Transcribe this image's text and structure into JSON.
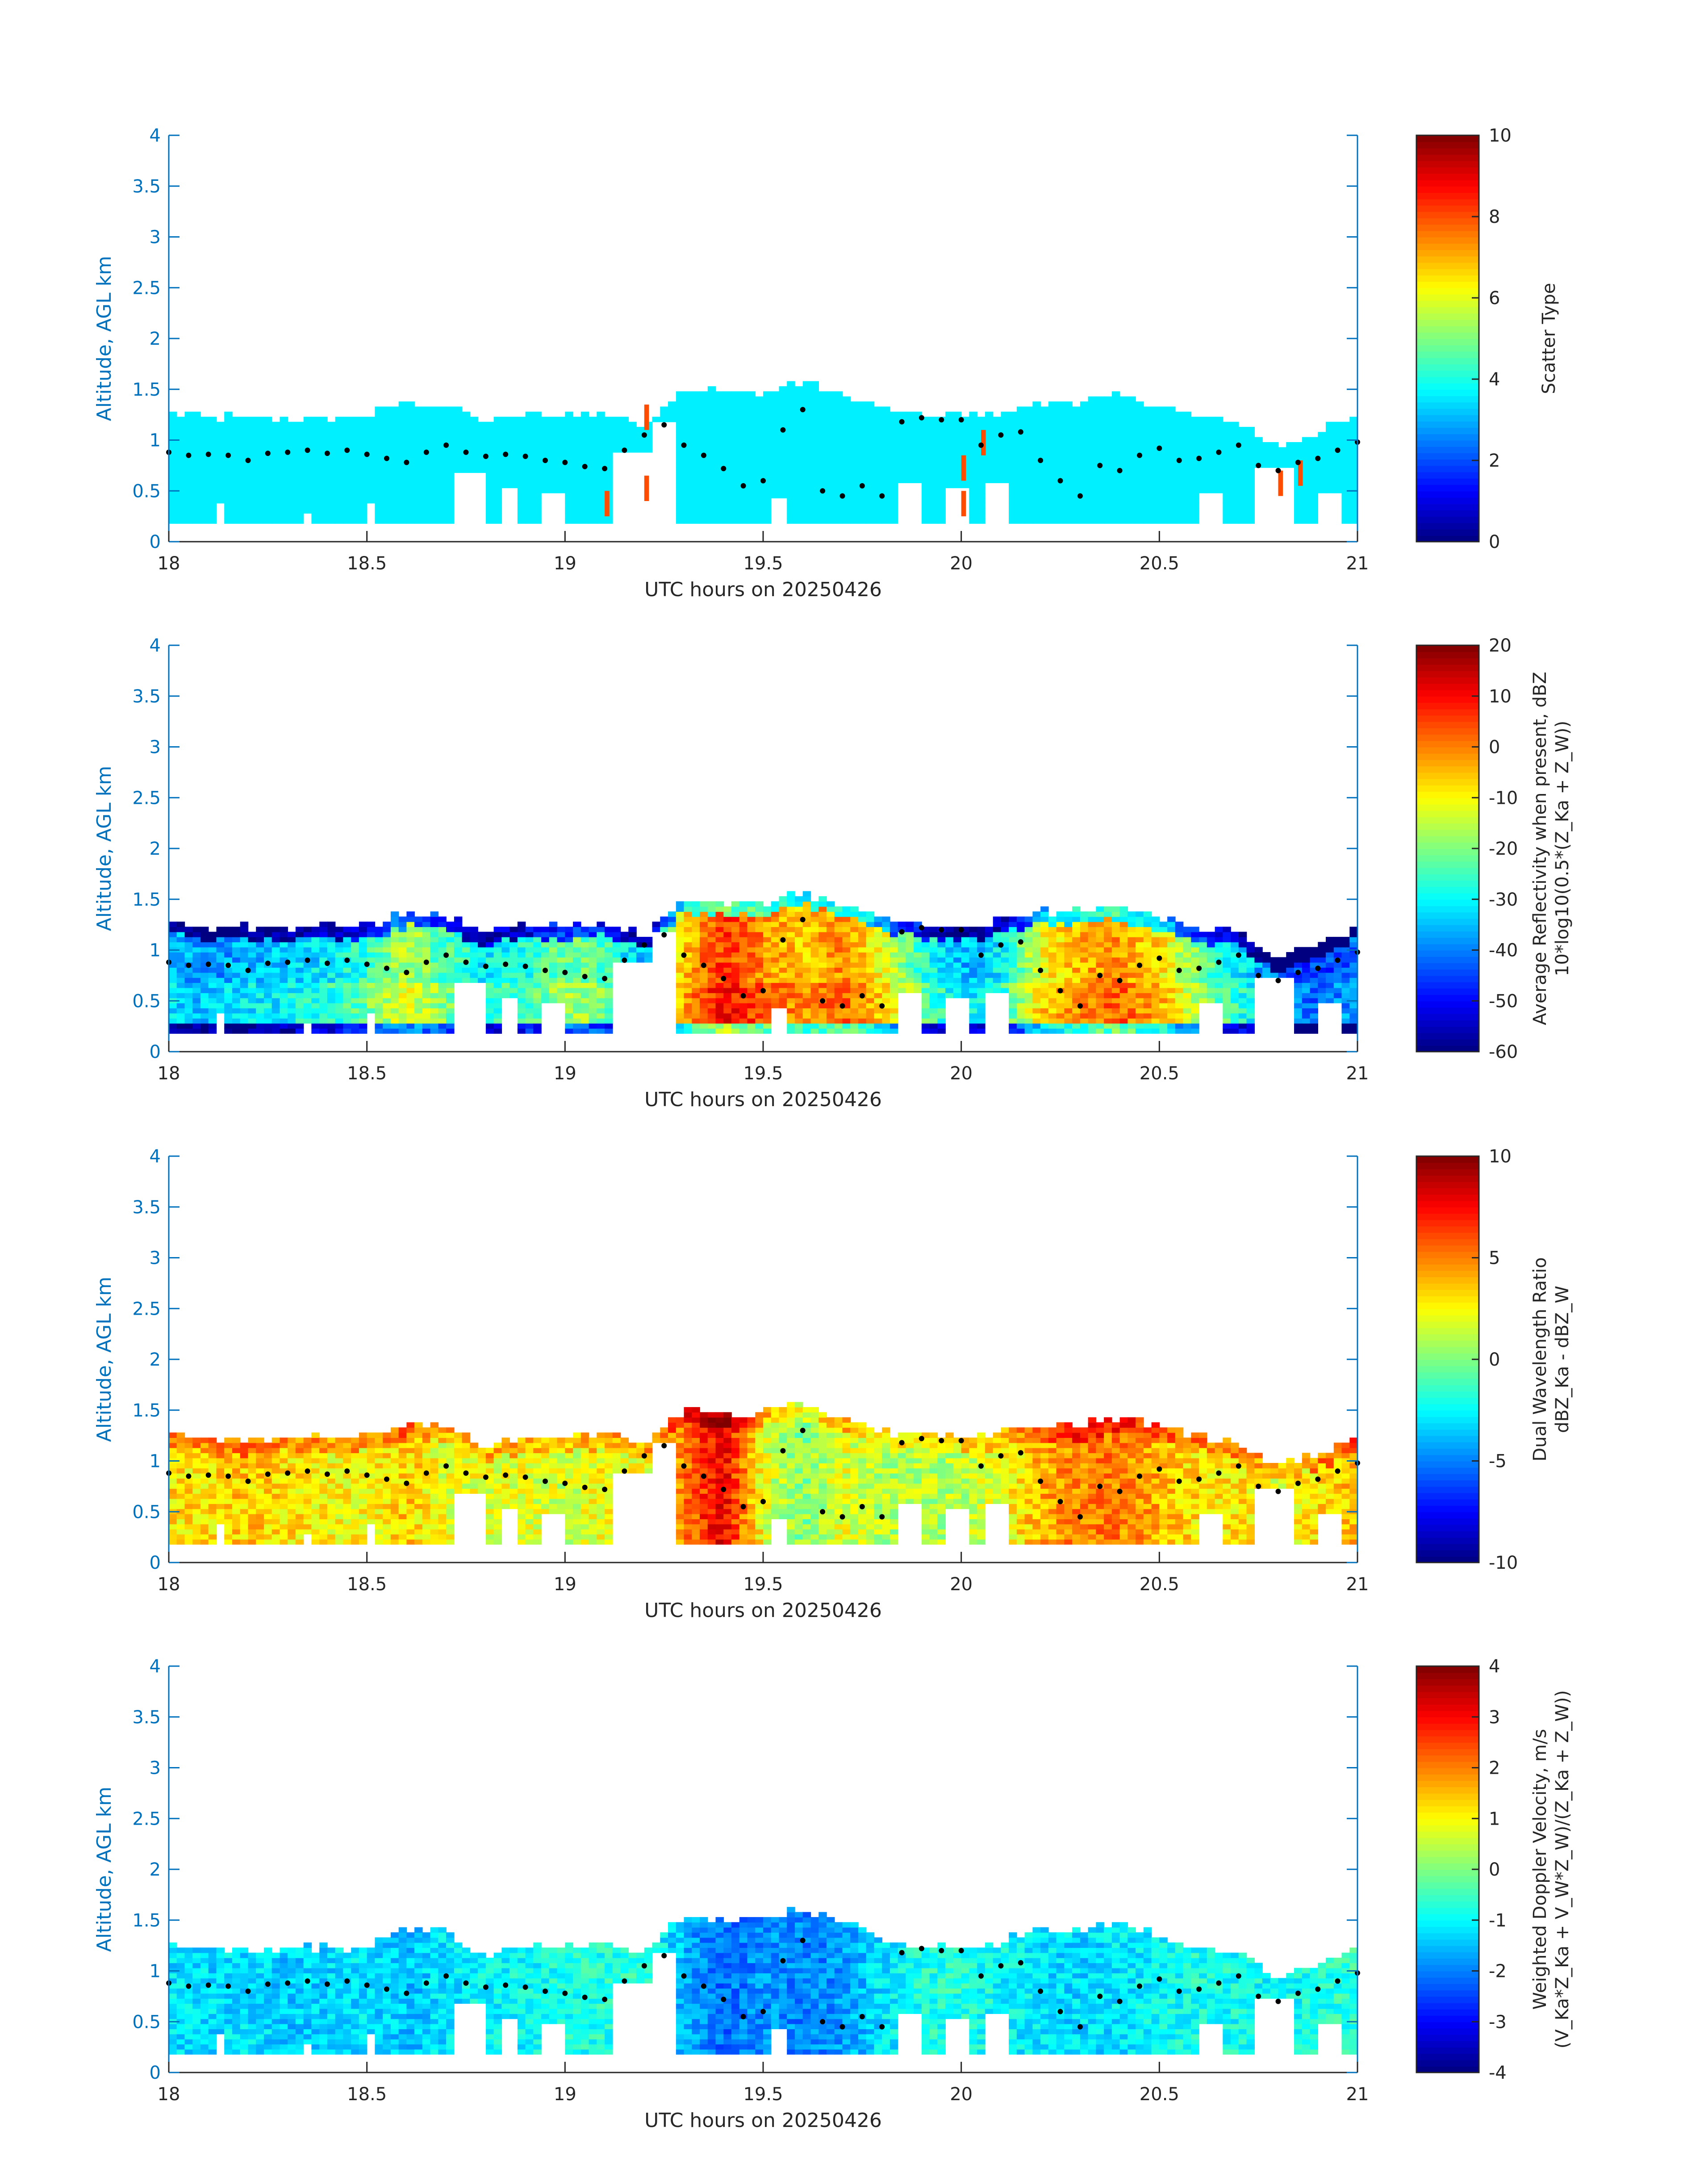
{
  "chart_data": [
    {
      "type": "heatmap",
      "xlabel": "UTC hours on 20250426",
      "ylabel": "Altitude, AGL km",
      "xlim": [
        18,
        21
      ],
      "ylim": [
        0,
        4
      ],
      "xticks": [
        "18",
        "18.5",
        "19",
        "19.5",
        "20",
        "20.5",
        "21"
      ],
      "yticks": [
        "0",
        "0.5",
        "1",
        "1.5",
        "2",
        "2.5",
        "3",
        "3.5",
        "4"
      ],
      "colorbar": {
        "label": "Scatter Type",
        "clim": [
          0,
          10
        ],
        "ticks": [
          "0",
          "2",
          "4",
          "6",
          "8",
          "10"
        ],
        "colormap": "jet"
      },
      "field": "scatter_type",
      "dominant_value": 3.6,
      "cell_bottom_km": 0.18,
      "cloud_top_km": [
        [
          18.0,
          1.25
        ],
        [
          18.1,
          1.2
        ],
        [
          18.2,
          1.2
        ],
        [
          18.3,
          1.2
        ],
        [
          18.4,
          1.2
        ],
        [
          18.5,
          1.22
        ],
        [
          18.6,
          1.35
        ],
        [
          18.7,
          1.32
        ],
        [
          18.8,
          1.15
        ],
        [
          18.9,
          1.22
        ],
        [
          19.0,
          1.22
        ],
        [
          19.1,
          1.25
        ],
        [
          19.2,
          1.12
        ],
        [
          19.3,
          1.5
        ],
        [
          19.4,
          1.45
        ],
        [
          19.5,
          1.45
        ],
        [
          19.6,
          1.55
        ],
        [
          19.7,
          1.42
        ],
        [
          19.8,
          1.28
        ],
        [
          19.9,
          1.22
        ],
        [
          20.0,
          1.22
        ],
        [
          20.1,
          1.25
        ],
        [
          20.2,
          1.35
        ],
        [
          20.3,
          1.35
        ],
        [
          20.4,
          1.4
        ],
        [
          20.5,
          1.3
        ],
        [
          20.6,
          1.2
        ],
        [
          20.7,
          1.15
        ],
        [
          20.8,
          0.9
        ],
        [
          20.9,
          1.05
        ],
        [
          21.0,
          1.2
        ]
      ],
      "outlier_cells": [
        [
          19.1,
          0.25,
          8
        ],
        [
          19.2,
          1.1,
          8
        ],
        [
          19.2,
          0.4,
          8
        ],
        [
          20.0,
          0.6,
          8
        ],
        [
          20.0,
          0.25,
          8
        ],
        [
          20.05,
          0.85,
          8
        ],
        [
          20.8,
          0.45,
          8
        ],
        [
          20.85,
          0.55,
          8
        ]
      ],
      "markers": {
        "color": "#000000",
        "points": [
          [
            18.0,
            0.88
          ],
          [
            18.05,
            0.85
          ],
          [
            18.1,
            0.86
          ],
          [
            18.15,
            0.85
          ],
          [
            18.2,
            0.8
          ],
          [
            18.25,
            0.87
          ],
          [
            18.3,
            0.88
          ],
          [
            18.35,
            0.9
          ],
          [
            18.4,
            0.87
          ],
          [
            18.45,
            0.9
          ],
          [
            18.5,
            0.86
          ],
          [
            18.55,
            0.82
          ],
          [
            18.6,
            0.78
          ],
          [
            18.65,
            0.88
          ],
          [
            18.7,
            0.95
          ],
          [
            18.75,
            0.88
          ],
          [
            18.8,
            0.84
          ],
          [
            18.85,
            0.86
          ],
          [
            18.9,
            0.84
          ],
          [
            18.95,
            0.8
          ],
          [
            19.0,
            0.78
          ],
          [
            19.05,
            0.74
          ],
          [
            19.1,
            0.72
          ],
          [
            19.15,
            0.9
          ],
          [
            19.2,
            1.05
          ],
          [
            19.25,
            1.15
          ],
          [
            19.3,
            0.95
          ],
          [
            19.35,
            0.85
          ],
          [
            19.4,
            0.72
          ],
          [
            19.45,
            0.55
          ],
          [
            19.5,
            0.6
          ],
          [
            19.55,
            1.1
          ],
          [
            19.6,
            1.3
          ],
          [
            19.65,
            0.5
          ],
          [
            19.7,
            0.45
          ],
          [
            19.75,
            0.55
          ],
          [
            19.8,
            0.45
          ],
          [
            19.85,
            1.18
          ],
          [
            19.9,
            1.22
          ],
          [
            19.95,
            1.2
          ],
          [
            20.0,
            1.2
          ],
          [
            20.05,
            0.95
          ],
          [
            20.1,
            1.05
          ],
          [
            20.15,
            1.08
          ],
          [
            20.2,
            0.8
          ],
          [
            20.25,
            0.6
          ],
          [
            20.3,
            0.45
          ],
          [
            20.35,
            0.75
          ],
          [
            20.4,
            0.7
          ],
          [
            20.45,
            0.85
          ],
          [
            20.5,
            0.92
          ],
          [
            20.55,
            0.8
          ],
          [
            20.6,
            0.82
          ],
          [
            20.65,
            0.88
          ],
          [
            20.7,
            0.95
          ],
          [
            20.75,
            0.75
          ],
          [
            20.8,
            0.7
          ],
          [
            20.85,
            0.78
          ],
          [
            20.9,
            0.82
          ],
          [
            20.95,
            0.9
          ],
          [
            21.0,
            0.98
          ]
        ]
      }
    },
    {
      "type": "heatmap",
      "xlabel": "UTC hours on 20250426",
      "ylabel": "Altitude, AGL km",
      "xlim": [
        18,
        21
      ],
      "ylim": [
        0,
        4
      ],
      "xticks": [
        "18",
        "18.5",
        "19",
        "19.5",
        "20",
        "20.5",
        "21"
      ],
      "yticks": [
        "0",
        "0.5",
        "1",
        "1.5",
        "2",
        "2.5",
        "3",
        "3.5",
        "4"
      ],
      "colorbar": {
        "label": "Average Reflectivity when present, dBZ",
        "label2": "10*log10(0.5*(Z_Ka + Z_W))",
        "clim": [
          -60,
          20
        ],
        "ticks": [
          "-60",
          "-50",
          "-40",
          "-30",
          "-20",
          "-10",
          "0",
          "10",
          "20"
        ],
        "colormap": "jet"
      },
      "field": "reflectivity_dbz",
      "column_core_dbz": [
        [
          18.0,
          -30
        ],
        [
          18.1,
          -32
        ],
        [
          18.2,
          -30
        ],
        [
          18.3,
          -28
        ],
        [
          18.4,
          -25
        ],
        [
          18.5,
          -20
        ],
        [
          18.6,
          -10
        ],
        [
          18.7,
          -18
        ],
        [
          18.8,
          -25
        ],
        [
          18.9,
          -22
        ],
        [
          19.0,
          -15
        ],
        [
          19.1,
          -18
        ],
        [
          19.2,
          -30
        ],
        [
          19.3,
          0
        ],
        [
          19.4,
          12
        ],
        [
          19.5,
          5
        ],
        [
          19.6,
          0
        ],
        [
          19.7,
          5
        ],
        [
          19.8,
          -5
        ],
        [
          19.9,
          -20
        ],
        [
          20.0,
          -30
        ],
        [
          20.1,
          -25
        ],
        [
          20.2,
          -5
        ],
        [
          20.3,
          2
        ],
        [
          20.4,
          5
        ],
        [
          20.5,
          -2
        ],
        [
          20.6,
          -15
        ],
        [
          20.7,
          -25
        ],
        [
          20.8,
          -35
        ],
        [
          20.9,
          -40
        ],
        [
          21.0,
          -35
        ]
      ],
      "markers": {
        "color": "#000000",
        "same_as_panel": 1
      }
    },
    {
      "type": "heatmap",
      "xlabel": "UTC hours on 20250426",
      "ylabel": "Altitude, AGL km",
      "xlim": [
        18,
        21
      ],
      "ylim": [
        0,
        4
      ],
      "xticks": [
        "18",
        "18.5",
        "19",
        "19.5",
        "20",
        "20.5",
        "21"
      ],
      "yticks": [
        "0",
        "0.5",
        "1",
        "1.5",
        "2",
        "2.5",
        "3",
        "3.5",
        "4"
      ],
      "colorbar": {
        "label": "Dual Wavelength Ratio",
        "label2": "dBZ_Ka - dBZ_W",
        "clim": [
          -10,
          10
        ],
        "ticks": [
          "-10",
          "-5",
          "0",
          "5",
          "10"
        ],
        "colormap": "jet"
      },
      "field": "dwr_db",
      "column_core_db": [
        [
          18.0,
          3
        ],
        [
          18.1,
          3
        ],
        [
          18.2,
          3.5
        ],
        [
          18.3,
          3
        ],
        [
          18.4,
          2.5
        ],
        [
          18.5,
          2.5
        ],
        [
          18.6,
          3.5
        ],
        [
          18.7,
          2
        ],
        [
          18.8,
          2
        ],
        [
          18.9,
          2
        ],
        [
          19.0,
          1.5
        ],
        [
          19.1,
          2.5
        ],
        [
          19.2,
          2
        ],
        [
          19.3,
          5
        ],
        [
          19.4,
          8
        ],
        [
          19.5,
          2
        ],
        [
          19.6,
          0
        ],
        [
          19.7,
          2
        ],
        [
          19.8,
          1
        ],
        [
          19.9,
          1
        ],
        [
          20.0,
          1
        ],
        [
          20.1,
          2
        ],
        [
          20.2,
          4
        ],
        [
          20.3,
          5
        ],
        [
          20.4,
          5
        ],
        [
          20.5,
          4
        ],
        [
          20.6,
          3
        ],
        [
          20.7,
          3
        ],
        [
          20.8,
          2
        ],
        [
          20.9,
          3
        ],
        [
          21.0,
          4
        ]
      ],
      "markers": {
        "color": "#000000",
        "same_as_panel": 1
      }
    },
    {
      "type": "heatmap",
      "xlabel": "UTC hours on 20250426",
      "ylabel": "Altitude, AGL km",
      "xlim": [
        18,
        21
      ],
      "ylim": [
        0,
        4
      ],
      "xticks": [
        "18",
        "18.5",
        "19",
        "19.5",
        "20",
        "20.5",
        "21"
      ],
      "yticks": [
        "0",
        "0.5",
        "1",
        "1.5",
        "2",
        "2.5",
        "3",
        "3.5",
        "4"
      ],
      "colorbar": {
        "label": "Weighted Doppler Velocity, m/s",
        "label2": "(V_Ka*Z_Ka + V_W*Z_W)/(Z_Ka + Z_W))",
        "clim": [
          -4,
          4
        ],
        "ticks": [
          "-4",
          "-3",
          "-2",
          "-1",
          "0",
          "1",
          "2",
          "3",
          "4"
        ],
        "colormap": "jet"
      },
      "field": "doppler_velocity_ms",
      "column_core_ms": [
        [
          18.0,
          -1.2
        ],
        [
          18.1,
          -1.3
        ],
        [
          18.2,
          -1.2
        ],
        [
          18.3,
          -1.4
        ],
        [
          18.4,
          -1.3
        ],
        [
          18.5,
          -1.2
        ],
        [
          18.6,
          -1.5
        ],
        [
          18.7,
          -1.2
        ],
        [
          18.8,
          -1.0
        ],
        [
          18.9,
          -1.0
        ],
        [
          19.0,
          -0.8
        ],
        [
          19.1,
          -0.8
        ],
        [
          19.2,
          -0.6
        ],
        [
          19.3,
          -1.6
        ],
        [
          19.4,
          -2.2
        ],
        [
          19.5,
          -1.8
        ],
        [
          19.6,
          -2.0
        ],
        [
          19.7,
          -1.8
        ],
        [
          19.8,
          -1.2
        ],
        [
          19.9,
          -0.8
        ],
        [
          20.0,
          -0.7
        ],
        [
          20.1,
          -1.0
        ],
        [
          20.2,
          -1.2
        ],
        [
          20.3,
          -1.3
        ],
        [
          20.4,
          -1.2
        ],
        [
          20.5,
          -1.0
        ],
        [
          20.6,
          -0.8
        ],
        [
          20.7,
          -0.9
        ],
        [
          20.8,
          -1.0
        ],
        [
          20.9,
          -0.8
        ],
        [
          21.0,
          -0.6
        ]
      ],
      "markers": {
        "color": "#000000",
        "same_as_panel": 1
      }
    }
  ]
}
